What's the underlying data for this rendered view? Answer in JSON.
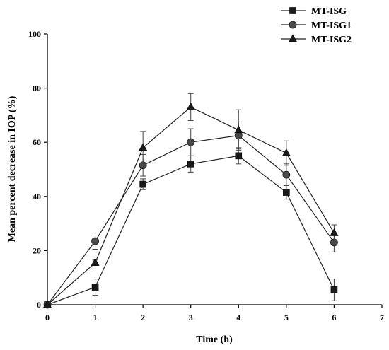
{
  "chart_data": {
    "type": "line",
    "xlabel": "Time (h)",
    "ylabel": "Mean percent decrease in IOP (%)",
    "xlim": [
      0,
      7
    ],
    "ylim": [
      0,
      100
    ],
    "xticks": [
      0,
      1,
      2,
      3,
      4,
      5,
      6,
      7
    ],
    "yticks": [
      0,
      20,
      40,
      60,
      80,
      100
    ],
    "x": [
      0,
      1,
      2,
      3,
      4,
      5,
      6
    ],
    "legend_position": "top-right",
    "series": [
      {
        "name": "MT-ISG",
        "marker": "square",
        "values": [
          0,
          6.5,
          44.5,
          52,
          55,
          41.5,
          5.5
        ],
        "errors": [
          0,
          3.0,
          2.0,
          3.0,
          3.0,
          2.5,
          4.0
        ]
      },
      {
        "name": "MT-ISG1",
        "marker": "circle",
        "values": [
          0,
          23.5,
          51.5,
          60,
          62.5,
          48,
          23
        ],
        "errors": [
          0,
          3.0,
          4.0,
          5.0,
          5.0,
          4.0,
          3.5
        ]
      },
      {
        "name": "MT-ISG2",
        "marker": "triangle",
        "values": [
          0,
          15.5,
          58,
          73,
          64.5,
          56,
          26.5
        ],
        "errors": [
          0,
          1.0,
          6.0,
          5.0,
          7.5,
          4.5,
          3.0
        ]
      }
    ]
  }
}
